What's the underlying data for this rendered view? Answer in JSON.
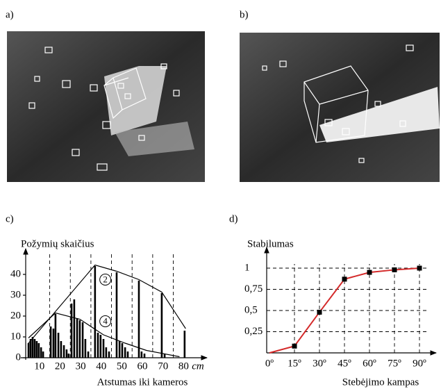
{
  "panel_labels": [
    "a)",
    "b)",
    "c)",
    "d)"
  ],
  "chart_data": [
    {
      "type": "bar",
      "y_label": "Požymių skaičius",
      "x_label": "Atstumas iki kameros",
      "x_unit": "cm",
      "xlim": [
        3,
        90
      ],
      "ylim": [
        0,
        50
      ],
      "xticks": [
        10,
        20,
        30,
        40,
        50,
        60,
        70,
        80
      ],
      "yticks": [
        0,
        10,
        20,
        30,
        40
      ],
      "vlines": [
        15,
        25,
        35,
        45,
        55,
        65,
        75
      ],
      "color": "#000000",
      "x": [
        4.7,
        5.7,
        6.7,
        7.7,
        8.7,
        9.7,
        10.8,
        11.8,
        15.5,
        16.8,
        17.8,
        19.2,
        20.5,
        21.9,
        23.2,
        24.2,
        25.6,
        26.9,
        28.3,
        29.6,
        31,
        32.3,
        33.7,
        37,
        38.4,
        39.7,
        41.1,
        42.4,
        43.8,
        47.5,
        48.9,
        50.2,
        51.6,
        52.9,
        58.3,
        59.6,
        61,
        69.4,
        70.8,
        80.5
      ],
      "values": [
        7,
        9,
        10,
        9,
        8,
        7,
        5,
        3,
        15,
        14,
        21,
        12,
        8,
        6,
        4,
        2,
        26,
        28,
        19,
        18,
        17,
        9,
        3,
        44,
        12,
        11,
        9,
        5,
        3,
        41,
        8,
        7,
        5,
        3,
        37,
        3,
        2,
        31,
        2,
        13
      ],
      "curves": [
        {
          "label": "2",
          "x": [
            4.7,
            37,
            47.5,
            58.3,
            69.4,
            81
          ],
          "values": [
            7,
            44.5,
            41.5,
            37.5,
            31.5,
            14
          ],
          "label_x": 42,
          "label_y": 37.5
        },
        {
          "label": "4",
          "x": [
            4.7,
            17.8,
            29.6,
            41.1,
            51.6,
            62,
            78
          ],
          "values": [
            9.5,
            21.5,
            18.5,
            11,
            7,
            3.5,
            0.5
          ],
          "label_x": 42,
          "label_y": 17.5
        }
      ]
    },
    {
      "type": "line",
      "y_label": "Stabilumas",
      "x_label": "Stebėjimo kampas",
      "categories": [
        "0º",
        "15º",
        "30º",
        "45º",
        "60º",
        "75º",
        "90º"
      ],
      "values": [
        0,
        0.08,
        0.48,
        0.87,
        0.95,
        0.98,
        1.0
      ],
      "ylim": [
        0,
        1.25
      ],
      "yticks": [
        1,
        {
          "value": 0.75,
          "label": "0,75"
        },
        {
          "value": 0.5,
          "label": "0,5"
        },
        {
          "value": 0.25,
          "label": "0,25"
        }
      ],
      "color": "#d42a2a",
      "marker_color": "#000000",
      "grid": true
    }
  ]
}
